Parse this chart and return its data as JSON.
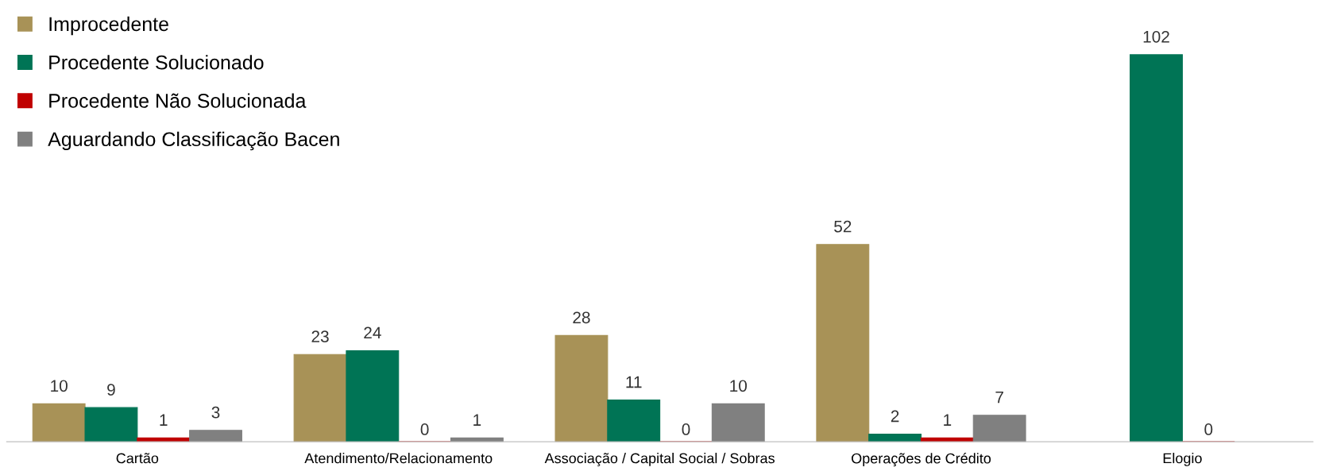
{
  "chart_data": {
    "type": "bar",
    "categories": [
      "Cartão",
      "Atendimento/Relacionamento",
      "Associação / Capital Social / Sobras",
      "Operações de Crédito",
      "Elogio"
    ],
    "series": [
      {
        "name": "Improcedente",
        "color": "#a89257",
        "values": [
          10,
          23,
          28,
          52,
          null
        ]
      },
      {
        "name": "Procedente Solucionado",
        "color": "#007455",
        "values": [
          9,
          24,
          11,
          2,
          102
        ]
      },
      {
        "name": "Procedente Não Solucionada",
        "color": "#c00000",
        "values": [
          1,
          0,
          0,
          1,
          0
        ]
      },
      {
        "name": "Aguardando Classificação Bacen",
        "color": "#808080",
        "values": [
          3,
          1,
          10,
          7,
          null
        ]
      }
    ],
    "data_labels": true,
    "legend": "top left",
    "grid": false,
    "tick_labels": "x"
  }
}
